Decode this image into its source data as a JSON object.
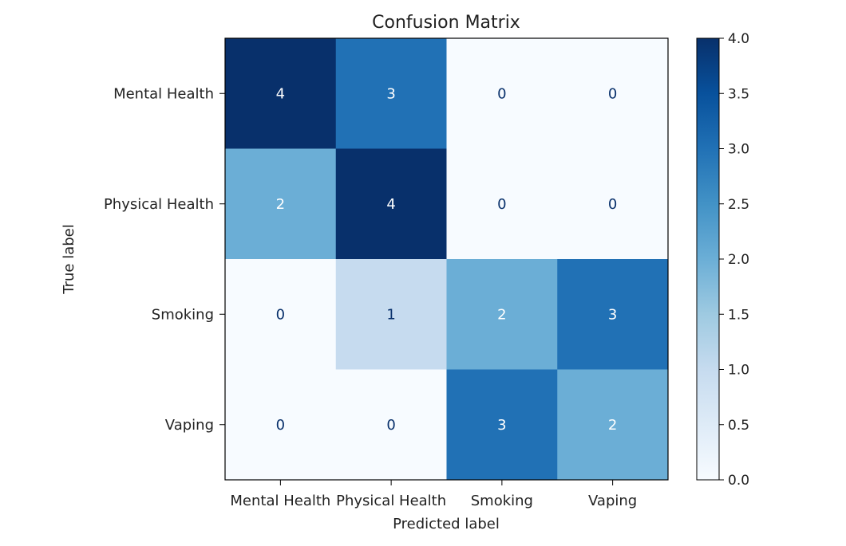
{
  "chart_data": {
    "type": "heatmap",
    "title": "Confusion Matrix",
    "xlabel": "Predicted label",
    "ylabel": "True label",
    "x_categories": [
      "Mental Health",
      "Physical Health",
      "Smoking",
      "Vaping"
    ],
    "y_categories": [
      "Mental Health",
      "Physical Health",
      "Smoking",
      "Vaping"
    ],
    "values": [
      [
        4,
        3,
        0,
        0
      ],
      [
        2,
        4,
        0,
        0
      ],
      [
        0,
        1,
        2,
        3
      ],
      [
        0,
        0,
        3,
        2
      ]
    ],
    "colormap": "Blues",
    "colorbar": {
      "min": 0,
      "max": 4,
      "ticks": [
        "0.0",
        "0.5",
        "1.0",
        "1.5",
        "2.0",
        "2.5",
        "3.0",
        "3.5",
        "4.0"
      ]
    },
    "grid": false
  }
}
